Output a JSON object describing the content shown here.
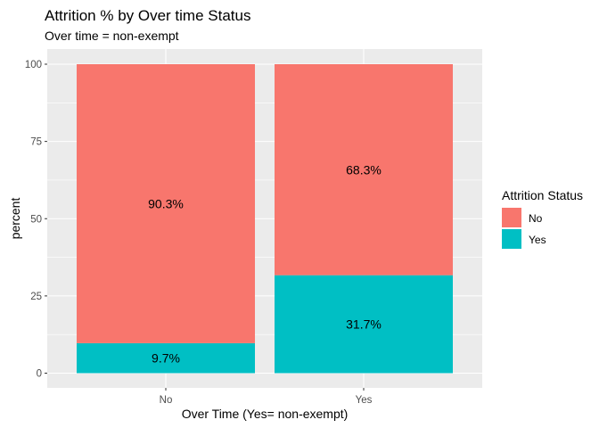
{
  "chart_data": {
    "type": "bar",
    "stacked": true,
    "title": "Attrition % by Over time Status",
    "subtitle": "Over time = non-exempt",
    "xlabel": "Over Time (Yes= non-exempt)",
    "ylabel": "percent",
    "categories": [
      "No",
      "Yes"
    ],
    "ylim": [
      0,
      100
    ],
    "yticks": [
      0,
      25,
      50,
      75,
      100
    ],
    "grid": true,
    "legend": {
      "title": "Attrition Status",
      "position": "right"
    },
    "series": [
      {
        "name": "Yes",
        "color": "#00BFC4",
        "values": [
          9.7,
          31.7
        ],
        "labels": [
          "9.7%",
          "31.7%"
        ]
      },
      {
        "name": "No",
        "color": "#F8766D",
        "values": [
          90.3,
          68.3
        ],
        "labels": [
          "90.3%",
          "68.3%"
        ]
      }
    ]
  }
}
